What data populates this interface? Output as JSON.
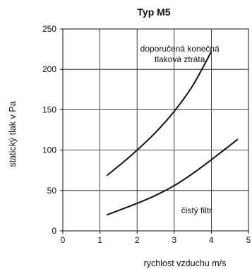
{
  "chart_data": {
    "type": "line",
    "title": "Typ M5",
    "xlabel": "rychlost vzduchu m/s",
    "ylabel": "statický tlak v Pa",
    "xlim": [
      0,
      5
    ],
    "ylim": [
      0,
      250
    ],
    "xticks": [
      "0",
      "1",
      "2",
      "3",
      "4",
      "5"
    ],
    "yticks": [
      "0",
      "50",
      "100",
      "150",
      "200",
      "250"
    ],
    "grid": true,
    "series": [
      {
        "x": [
          1.2,
          1.6,
          2.0,
          2.5,
          3.0,
          3.5,
          4.0
        ],
        "y": [
          69,
          84,
          100,
          122,
          148,
          180,
          222
        ]
      },
      {
        "x": [
          1.2,
          1.6,
          2.0,
          2.5,
          3.0,
          3.5,
          4.0,
          4.7
        ],
        "y": [
          20,
          27,
          34,
          44,
          56,
          71,
          88,
          113
        ]
      }
    ],
    "annotations": [
      {
        "text_lines": [
          "doporučená konečná",
          "tlaková ztráta"
        ],
        "x": 3.15,
        "y": 222
      },
      {
        "text_lines": [
          "čistý filtr"
        ],
        "x": 3.6,
        "y": 22
      }
    ]
  }
}
